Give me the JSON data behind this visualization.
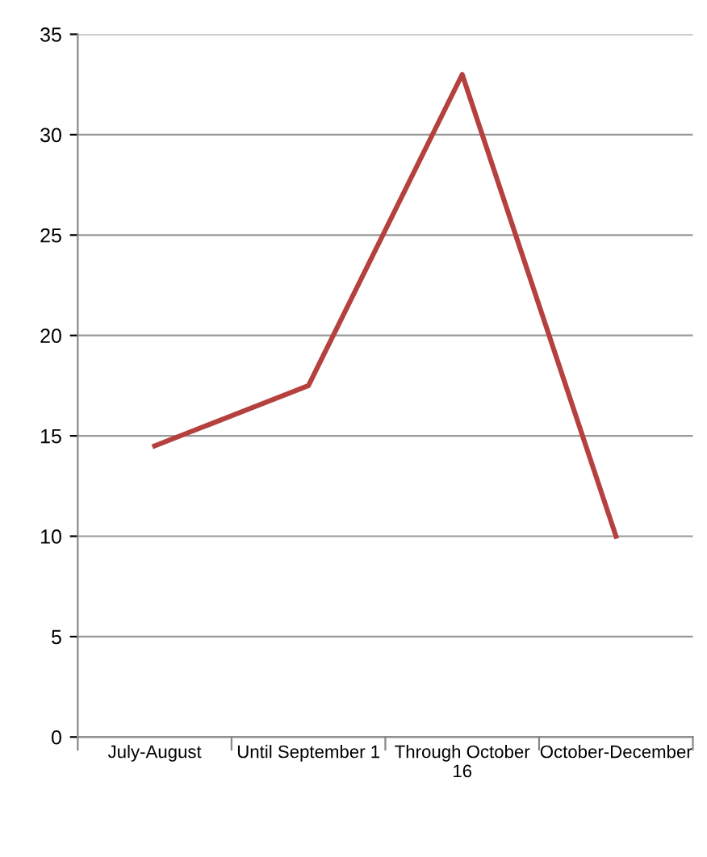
{
  "chart_data": {
    "type": "line",
    "categories": [
      "July-August",
      "Until September 1",
      "Through October\n16",
      "October-December"
    ],
    "series": [
      {
        "color": "#b5413f",
        "values": [
          14.5,
          17.5,
          33,
          10
        ]
      }
    ],
    "ylim": [
      0,
      35
    ],
    "yticks": [
      0,
      5,
      10,
      15,
      20,
      25,
      30,
      35
    ],
    "grid": "y",
    "legend": false,
    "marker": "none",
    "line_style": "solid"
  }
}
